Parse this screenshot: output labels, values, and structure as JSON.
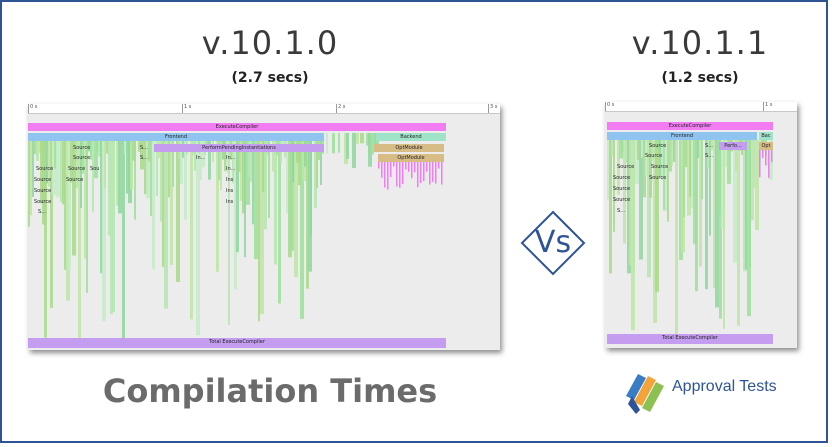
{
  "left": {
    "version": "v.10.1.0",
    "time": "(2.7 secs)",
    "ticks": [
      "0 s",
      "1 s",
      "2 s",
      "3 s"
    ],
    "bars": {
      "execute": "ExecuteCompiler",
      "frontend": "Frontend",
      "backend": "Backend",
      "perform": "PerformPendingInstantiations",
      "opt1": "OptModule",
      "opt2": "OptModule",
      "total": "Total ExecuteCompiler"
    },
    "labels": [
      "Source",
      "Source",
      "Source",
      "Source",
      "Source",
      "Source",
      "Source",
      "Sou",
      "Source",
      "S...",
      "S...",
      "S...",
      "In...",
      "In...",
      "In...",
      "Ins",
      "Ins",
      "Ins"
    ]
  },
  "right": {
    "version": "v.10.1.1",
    "time": "(1.2 secs)",
    "ticks": [
      "0 s",
      "1 s"
    ],
    "bars": {
      "execute": "ExecuteCompiler",
      "frontend": "Frontend",
      "backend": "Bac",
      "perform": "Perfo...",
      "opt": "Opt",
      "total": "Total ExecuteCompiler"
    },
    "labels": [
      "Source",
      "Source",
      "Source",
      "Source",
      "Source",
      "Source",
      "Source",
      "Source",
      "S...",
      "S...",
      "S..."
    ]
  },
  "vs": "Vs",
  "title": "Compilation Times",
  "logo": {
    "text": "Approval Tests",
    "colors": [
      "#3b7dc4",
      "#f2a33a",
      "#8cc152",
      "#2f5496"
    ]
  },
  "colors": {
    "border": "#2f5496",
    "execute": "#f27cf2",
    "frontend": "#8fc3f0",
    "backend": "#9fe3c8",
    "perform": "#c59df0",
    "opt": "#d8bc86",
    "source": "#a9d98a",
    "total": "#c59df0"
  }
}
